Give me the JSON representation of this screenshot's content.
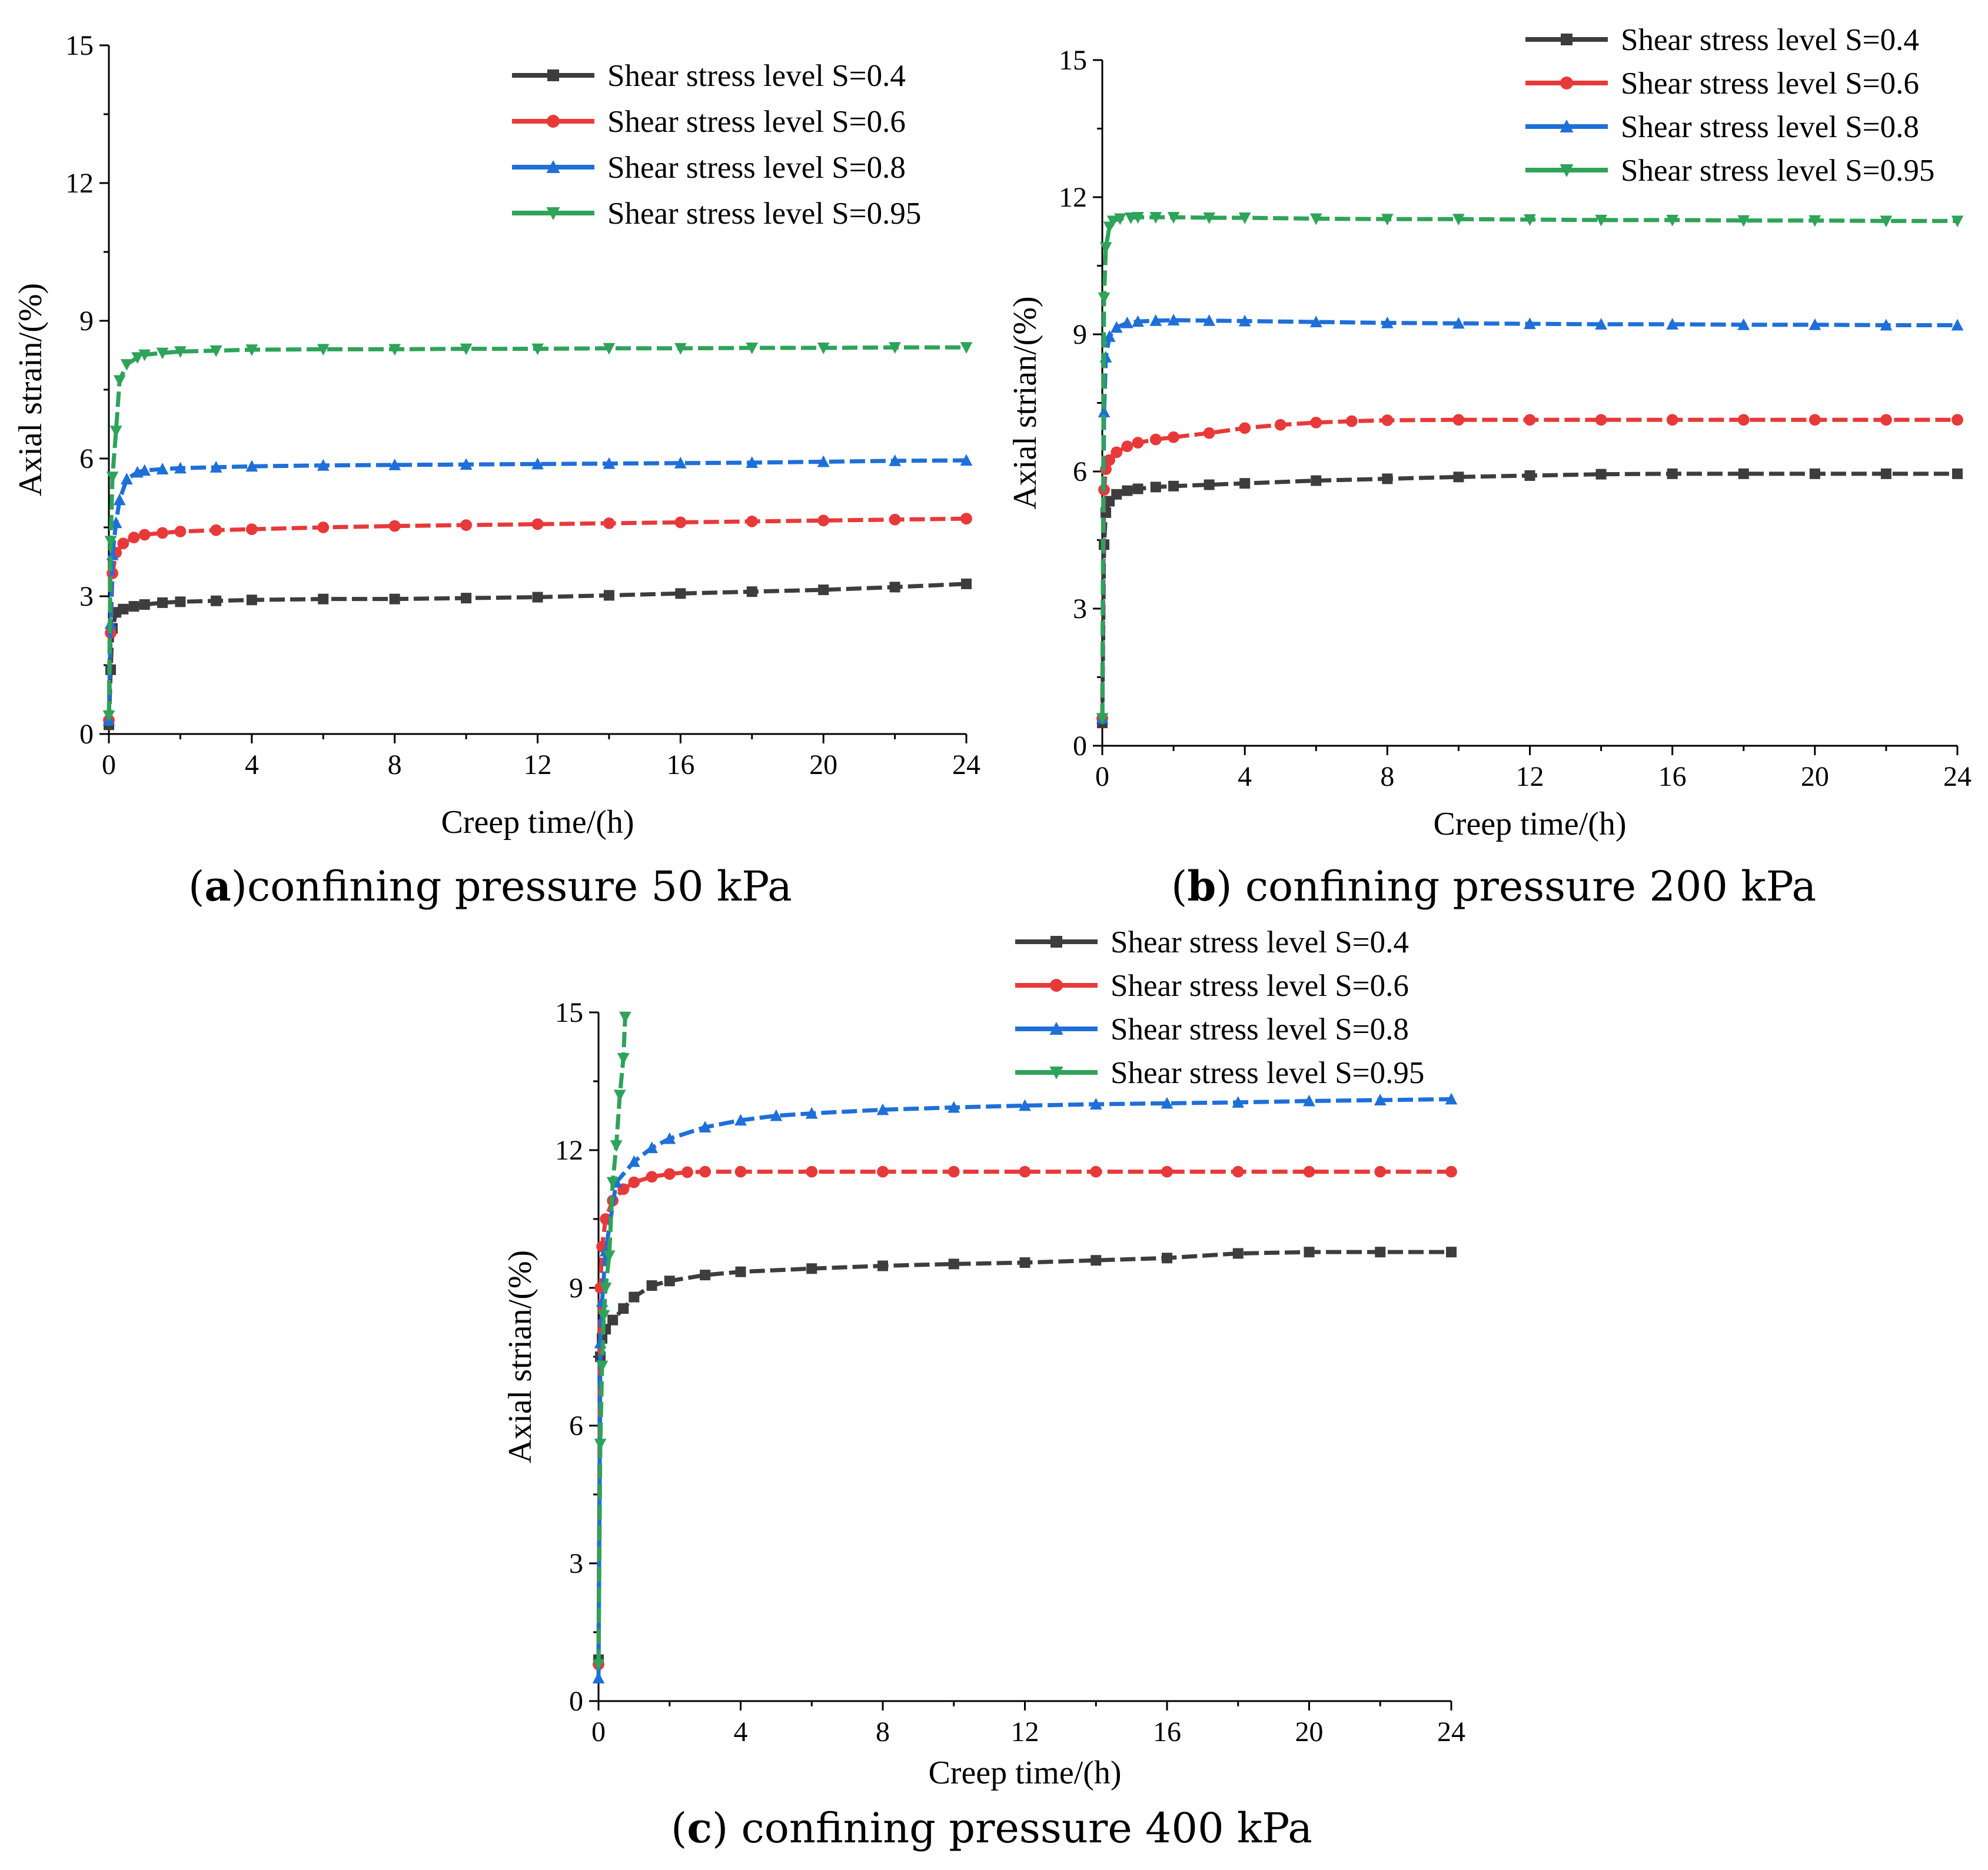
{
  "chart_data": [
    {
      "type": "line",
      "panel": "a",
      "caption": {
        "open": "(",
        "letter": "a",
        "text": ")confining pressure 50 kPa"
      },
      "xlabel": "Creep time/(h)",
      "ylabel": "Axial strain/(%)",
      "xlim": [
        0,
        24
      ],
      "ylim": [
        0,
        15
      ],
      "xticks": [
        0,
        4,
        8,
        12,
        16,
        20,
        24
      ],
      "yticks": [
        0,
        3,
        6,
        9,
        12,
        15
      ],
      "legend_position": "top-right",
      "series": [
        {
          "name": "Shear stress level S=0.4",
          "color": "#3d3d3d",
          "marker": "square",
          "x": [
            0,
            0.05,
            0.1,
            0.2,
            0.4,
            0.7,
            1,
            1.5,
            2,
            3,
            4,
            6,
            8,
            10,
            12,
            14,
            16,
            18,
            20,
            22,
            24
          ],
          "y": [
            0.2,
            1.4,
            2.3,
            2.65,
            2.72,
            2.78,
            2.82,
            2.86,
            2.88,
            2.9,
            2.92,
            2.94,
            2.94,
            2.96,
            2.98,
            3.02,
            3.06,
            3.1,
            3.14,
            3.2,
            3.27
          ]
        },
        {
          "name": "Shear stress level S=0.6",
          "color": "#e8393a",
          "marker": "circle",
          "x": [
            0,
            0.05,
            0.1,
            0.2,
            0.4,
            0.7,
            1,
            1.5,
            2,
            3,
            4,
            6,
            8,
            10,
            12,
            14,
            16,
            18,
            20,
            22,
            24
          ],
          "y": [
            0.3,
            2.2,
            3.5,
            3.95,
            4.15,
            4.28,
            4.34,
            4.38,
            4.41,
            4.44,
            4.46,
            4.5,
            4.53,
            4.55,
            4.57,
            4.59,
            4.61,
            4.63,
            4.65,
            4.67,
            4.69
          ]
        },
        {
          "name": "Shear stress level S=0.8",
          "color": "#1f6fd8",
          "marker": "triangle-up",
          "x": [
            0,
            0.05,
            0.1,
            0.2,
            0.3,
            0.5,
            0.8,
            1,
            1.5,
            2,
            3,
            4,
            6,
            8,
            10,
            12,
            14,
            16,
            18,
            20,
            22,
            24
          ],
          "y": [
            0.3,
            2.4,
            3.9,
            4.6,
            5.1,
            5.55,
            5.7,
            5.74,
            5.77,
            5.79,
            5.81,
            5.83,
            5.85,
            5.86,
            5.87,
            5.88,
            5.89,
            5.9,
            5.91,
            5.93,
            5.95,
            5.96
          ]
        },
        {
          "name": "Shear stress level S=0.95",
          "color": "#2ea359",
          "marker": "triangle-down",
          "x": [
            0,
            0.05,
            0.1,
            0.2,
            0.3,
            0.5,
            0.8,
            1,
            1.5,
            2,
            3,
            4,
            6,
            8,
            10,
            12,
            14,
            16,
            18,
            20,
            22,
            24
          ],
          "y": [
            0.4,
            4.2,
            5.6,
            6.6,
            7.7,
            8.05,
            8.2,
            8.26,
            8.3,
            8.33,
            8.35,
            8.37,
            8.38,
            8.38,
            8.39,
            8.39,
            8.4,
            8.4,
            8.41,
            8.41,
            8.42,
            8.42
          ]
        }
      ]
    },
    {
      "type": "line",
      "panel": "b",
      "caption": {
        "open": "(",
        "letter": "b",
        "text": ") confining pressure 200 kPa"
      },
      "xlabel": "Creep time/(h)",
      "ylabel": "Axial strian/(%)",
      "xlim": [
        0,
        24
      ],
      "ylim": [
        0,
        15
      ],
      "xticks": [
        0,
        4,
        8,
        12,
        16,
        20,
        24
      ],
      "yticks": [
        0,
        3,
        6,
        9,
        12,
        15
      ],
      "legend_position": "top-right",
      "series": [
        {
          "name": "Shear stress level S=0.4",
          "color": "#3d3d3d",
          "marker": "square",
          "x": [
            0,
            0.05,
            0.1,
            0.2,
            0.4,
            0.7,
            1,
            1.5,
            2,
            3,
            4,
            6,
            8,
            10,
            12,
            14,
            16,
            18,
            20,
            22,
            24
          ],
          "y": [
            0.5,
            4.4,
            5.1,
            5.35,
            5.5,
            5.58,
            5.62,
            5.66,
            5.68,
            5.71,
            5.74,
            5.8,
            5.84,
            5.88,
            5.91,
            5.94,
            5.95,
            5.95,
            5.95,
            5.95,
            5.95
          ]
        },
        {
          "name": "Shear stress level S=0.6",
          "color": "#e8393a",
          "marker": "circle",
          "x": [
            0,
            0.05,
            0.1,
            0.2,
            0.4,
            0.7,
            1,
            1.5,
            2,
            3,
            4,
            5,
            6,
            7,
            8,
            10,
            12,
            14,
            16,
            18,
            20,
            22,
            24
          ],
          "y": [
            0.6,
            5.6,
            6.05,
            6.25,
            6.42,
            6.55,
            6.63,
            6.7,
            6.75,
            6.84,
            6.95,
            7.02,
            7.07,
            7.1,
            7.12,
            7.13,
            7.13,
            7.13,
            7.13,
            7.13,
            7.13,
            7.13,
            7.13
          ]
        },
        {
          "name": "Shear stress level S=0.8",
          "color": "#1f6fd8",
          "marker": "triangle-up",
          "x": [
            0,
            0.05,
            0.1,
            0.2,
            0.4,
            0.7,
            1,
            1.5,
            2,
            3,
            4,
            6,
            8,
            10,
            12,
            14,
            16,
            18,
            20,
            22,
            24
          ],
          "y": [
            0.6,
            7.3,
            8.5,
            8.95,
            9.15,
            9.25,
            9.28,
            9.3,
            9.31,
            9.3,
            9.29,
            9.27,
            9.25,
            9.24,
            9.23,
            9.22,
            9.22,
            9.21,
            9.21,
            9.2,
            9.2
          ]
        },
        {
          "name": "Shear stress level S=0.95",
          "color": "#2ea359",
          "marker": "triangle-down",
          "x": [
            0,
            0.05,
            0.1,
            0.2,
            0.3,
            0.5,
            0.8,
            1,
            1.5,
            2,
            3,
            4,
            6,
            8,
            10,
            12,
            14,
            16,
            18,
            20,
            22,
            24
          ],
          "y": [
            0.6,
            9.8,
            10.9,
            11.35,
            11.48,
            11.53,
            11.55,
            11.56,
            11.56,
            11.56,
            11.55,
            11.55,
            11.53,
            11.52,
            11.52,
            11.51,
            11.5,
            11.5,
            11.49,
            11.49,
            11.48,
            11.48
          ]
        }
      ]
    },
    {
      "type": "line",
      "panel": "c",
      "caption": {
        "open": "(",
        "letter": "c",
        "text": ") confining pressure 400 kPa"
      },
      "xlabel": "Creep time/(h)",
      "ylabel": "Axial strian/(%)",
      "xlim": [
        0,
        24
      ],
      "ylim": [
        0,
        15
      ],
      "xticks": [
        0,
        4,
        8,
        12,
        16,
        20,
        24
      ],
      "yticks": [
        0,
        3,
        6,
        9,
        12,
        15
      ],
      "legend_position": "top-right",
      "series": [
        {
          "name": "Shear stress level S=0.4",
          "color": "#3d3d3d",
          "marker": "square",
          "x": [
            0,
            0.05,
            0.1,
            0.2,
            0.4,
            0.7,
            1,
            1.5,
            2,
            3,
            4,
            6,
            8,
            10,
            12,
            14,
            16,
            18,
            20,
            22,
            24
          ],
          "y": [
            0.9,
            7.5,
            7.9,
            8.1,
            8.3,
            8.55,
            8.8,
            9.05,
            9.15,
            9.28,
            9.35,
            9.42,
            9.48,
            9.52,
            9.55,
            9.6,
            9.65,
            9.75,
            9.78,
            9.78,
            9.78
          ]
        },
        {
          "name": "Shear stress level S=0.6",
          "color": "#e8393a",
          "marker": "circle",
          "x": [
            0,
            0.05,
            0.1,
            0.2,
            0.4,
            0.7,
            1,
            1.5,
            2,
            2.5,
            3,
            4,
            6,
            8,
            10,
            12,
            14,
            16,
            18,
            20,
            22,
            24
          ],
          "y": [
            0.8,
            9.0,
            9.9,
            10.5,
            10.9,
            11.15,
            11.3,
            11.42,
            11.48,
            11.52,
            11.53,
            11.53,
            11.53,
            11.53,
            11.53,
            11.53,
            11.53,
            11.53,
            11.53,
            11.53,
            11.53,
            11.53
          ]
        },
        {
          "name": "Shear stress level S=0.8",
          "color": "#1f6fd8",
          "marker": "triangle-up",
          "x": [
            0,
            0.05,
            0.1,
            0.2,
            0.5,
            1,
            1.5,
            2,
            3,
            4,
            5,
            6,
            8,
            10,
            12,
            14,
            16,
            18,
            20,
            22,
            24
          ],
          "y": [
            0.5,
            7.8,
            8.7,
            9.8,
            11.3,
            11.75,
            12.05,
            12.25,
            12.5,
            12.65,
            12.75,
            12.8,
            12.88,
            12.93,
            12.97,
            13.0,
            13.02,
            13.04,
            13.07,
            13.09,
            13.11
          ]
        },
        {
          "name": "Shear stress level S=0.95",
          "color": "#2ea359",
          "marker": "triangle-down",
          "x": [
            0,
            0.05,
            0.1,
            0.15,
            0.2,
            0.3,
            0.4,
            0.5,
            0.6,
            0.7,
            0.75
          ],
          "y": [
            0.8,
            5.6,
            7.3,
            8.4,
            9.0,
            9.7,
            11.3,
            12.1,
            13.2,
            14.0,
            14.9
          ]
        }
      ]
    }
  ]
}
